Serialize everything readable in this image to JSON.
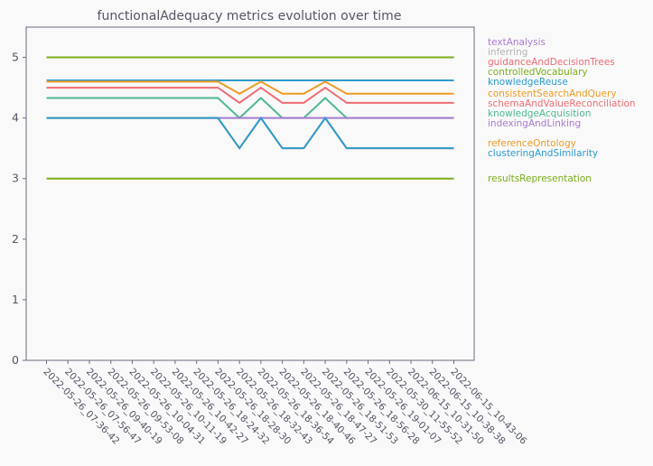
{
  "chart_data": {
    "type": "line",
    "title": "functionalAdequacy metrics evolution over time",
    "xlabel": "",
    "ylabel": "",
    "ylim": [
      0,
      5.5
    ],
    "yticks": [
      "0",
      "1",
      "2",
      "3",
      "4",
      "5"
    ],
    "grid": false,
    "legend_placement": "right",
    "x": [
      "2022-05-26_07-36-42",
      "2022-05-26_07-56-47",
      "2022-05-26_09-40-19",
      "2022-05-26_09-53-08",
      "2022-05-26_10-04-31",
      "2022-05-26_10-11-19",
      "2022-05-26_10-42-27",
      "2022-05-26_18-24-32",
      "2022-05-26_18-28-30",
      "2022-05-26_18-32-43",
      "2022-05-26_18-36-54",
      "2022-05-26_18-40-46",
      "2022-05-26_18-47-27",
      "2022-05-26_18-51-53",
      "2022-05-26_18-56-28",
      "2022-05-26_19-01-07",
      "2022-05-30_11-55-52",
      "2022-06-15_10-31-50",
      "2022-06-15_10-38-38",
      "2022-06-15_10-43-06"
    ],
    "series": [
      {
        "name": "textAnalysis",
        "color": "#a87bd0",
        "values": [
          5,
          5,
          5,
          5,
          5,
          5,
          5,
          5,
          5,
          5,
          5,
          5,
          5,
          5,
          5,
          5,
          5,
          5,
          5,
          5
        ]
      },
      {
        "name": "inferring",
        "color": "#b3b3b3",
        "values": [
          5,
          5,
          5,
          5,
          5,
          5,
          5,
          5,
          5,
          5,
          5,
          5,
          5,
          5,
          5,
          5,
          5,
          5,
          5,
          5
        ]
      },
      {
        "name": "guidanceAndDecisionTrees",
        "color": "#ec6b75",
        "values": [
          5,
          5,
          5,
          5,
          5,
          5,
          5,
          5,
          5,
          5,
          5,
          5,
          5,
          5,
          5,
          5,
          5,
          5,
          5,
          5
        ]
      },
      {
        "name": "controlledVocabulary",
        "color": "#7cae1b",
        "values": [
          5,
          5,
          5,
          5,
          5,
          5,
          5,
          5,
          5,
          5,
          5,
          5,
          5,
          5,
          5,
          5,
          5,
          5,
          5,
          5
        ]
      },
      {
        "name": "knowledgeReuse",
        "color": "#2b9bd1",
        "values": [
          4.62,
          4.62,
          4.62,
          4.62,
          4.62,
          4.62,
          4.62,
          4.62,
          4.62,
          4.62,
          4.62,
          4.62,
          4.62,
          4.62,
          4.62,
          4.62,
          4.62,
          4.62,
          4.62,
          4.62
        ]
      },
      {
        "name": "consistentSearchAndQuery",
        "color": "#ee9a24",
        "values": [
          4.6,
          4.6,
          4.6,
          4.6,
          4.6,
          4.6,
          4.6,
          4.6,
          4.6,
          4.4,
          4.6,
          4.4,
          4.4,
          4.6,
          4.4,
          4.4,
          4.4,
          4.4,
          4.4,
          4.4
        ]
      },
      {
        "name": "schemaAndValueReconciliation",
        "color": "#ee6d74",
        "values": [
          4.5,
          4.5,
          4.5,
          4.5,
          4.5,
          4.5,
          4.5,
          4.5,
          4.5,
          4.25,
          4.5,
          4.25,
          4.25,
          4.5,
          4.25,
          4.25,
          4.25,
          4.25,
          4.25,
          4.25
        ]
      },
      {
        "name": "knowledgeAcquisition",
        "color": "#4db894",
        "values": [
          4.33,
          4.33,
          4.33,
          4.33,
          4.33,
          4.33,
          4.33,
          4.33,
          4.33,
          4,
          4.33,
          4,
          4,
          4.33,
          4,
          4,
          4,
          4,
          4,
          4
        ]
      },
      {
        "name": "indexingAndLinking",
        "color": "#a87bd0",
        "values": [
          4,
          4,
          4,
          4,
          4,
          4,
          4,
          4,
          4,
          4,
          4,
          4,
          4,
          4,
          4,
          4,
          4,
          4,
          4,
          4
        ]
      },
      {
        "name": "referenceOntology",
        "color": "#ee9a24",
        "values": [
          4,
          4,
          4,
          4,
          4,
          4,
          4,
          4,
          4,
          3.5,
          4,
          3.5,
          3.5,
          4,
          3.5,
          3.5,
          3.5,
          3.5,
          3.5,
          3.5
        ]
      },
      {
        "name": "clusteringAndSimilarity",
        "color": "#2b9bd1",
        "values": [
          4,
          4,
          4,
          4,
          4,
          4,
          4,
          4,
          4,
          3.5,
          4,
          3.5,
          3.5,
          4,
          3.5,
          3.5,
          3.5,
          3.5,
          3.5,
          3.5
        ]
      },
      {
        "name": "resultsRepresentation",
        "color": "#7cae1b",
        "values": [
          3,
          3,
          3,
          3,
          3,
          3,
          3,
          3,
          3,
          3,
          3,
          3,
          3,
          3,
          3,
          3,
          3,
          3,
          3,
          3
        ]
      }
    ],
    "colors": {
      "axis": "#6b6b80",
      "text": "#555566",
      "background": "#f9f9f9"
    }
  }
}
